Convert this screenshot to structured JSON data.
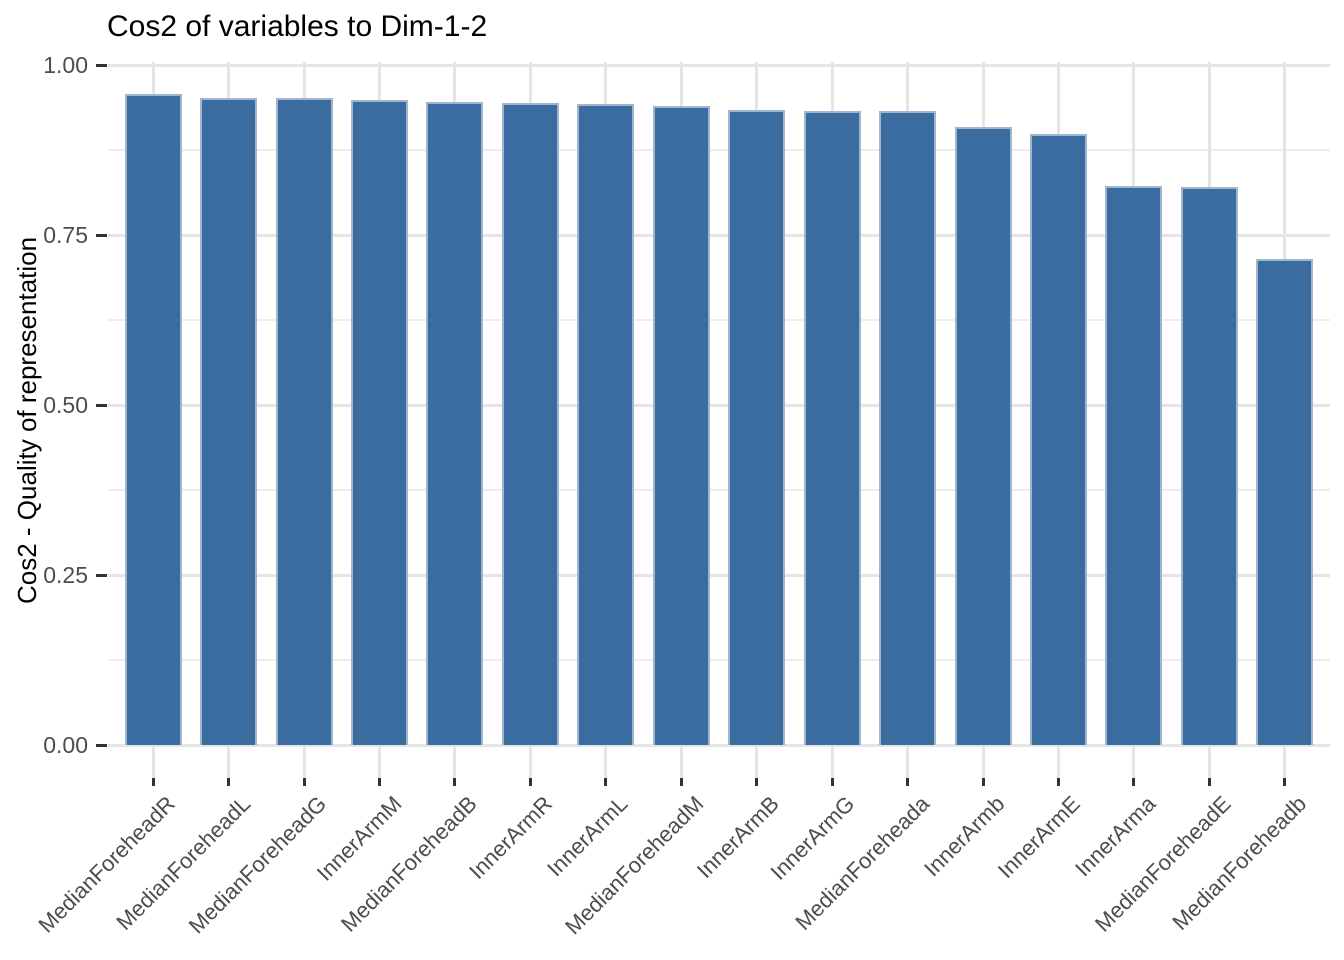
{
  "title": "Cos2 of variables to Dim-1-2",
  "chart_data": {
    "type": "bar",
    "title": "Cos2 of variables to Dim-1-2",
    "xlabel": "",
    "ylabel": "Cos2 - Quality of representation",
    "categories": [
      "MedianForeheadR",
      "MedianForeheadL",
      "MedianForeheadG",
      "InnerArmM",
      "MedianForeheadB",
      "InnerArmR",
      "InnerArmL",
      "MedianForeheadM",
      "InnerArmB",
      "InnerArmG",
      "MedianForeheada",
      "InnerArmb",
      "InnerArmE",
      "InnerArma",
      "MedianForeheadE",
      "MedianForeheadb"
    ],
    "values": [
      0.958,
      0.952,
      0.951,
      0.949,
      0.945,
      0.944,
      0.942,
      0.939,
      0.934,
      0.933,
      0.932,
      0.909,
      0.899,
      0.822,
      0.82,
      0.714
    ],
    "ylim": [
      0,
      1.0
    ],
    "yticks": [
      0,
      0.25,
      0.5,
      0.75,
      1.0
    ],
    "ytick_labels": [
      "0.00",
      "0.25",
      "0.50",
      "0.75",
      "1.00"
    ],
    "minor_yticks": [
      0.125,
      0.375,
      0.625,
      0.875
    ],
    "grid": "major+minor horizontal, major vertical at category centers",
    "legend": "none",
    "x_label_angle": 45,
    "bar_color": "#3a6ca0",
    "grid_major_color": "#e5e5e5",
    "grid_minor_color": "#ededed",
    "tick_text_color": "#4d4d4d",
    "title_color": "#000000",
    "background_color": "#ffffff"
  }
}
